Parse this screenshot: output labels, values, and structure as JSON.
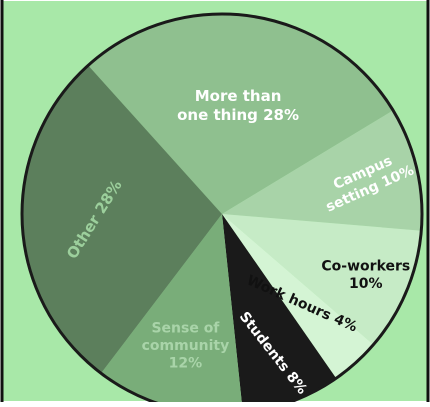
{
  "chart_data": {
    "type": "pie",
    "title": "",
    "start_angle_deg": -132,
    "direction": "clockwise",
    "slices": [
      {
        "label": "More than one thing",
        "value": 28,
        "color": "#8fc08f",
        "text_color": "#ffffff",
        "label_lines": [
          "More than",
          "one thing 28%"
        ]
      },
      {
        "label": "Campus setting",
        "value": 10,
        "color": "#a8d3a8",
        "text_color": "#ffffff",
        "label_lines": [
          "Campus",
          "setting 10%"
        ]
      },
      {
        "label": "Co-workers",
        "value": 10,
        "color": "#c6ebc6",
        "text_color": "#111111",
        "label_lines": [
          "Co-workers",
          "10%"
        ]
      },
      {
        "label": "Work hours",
        "value": 4,
        "color": "#d4f4d4",
        "text_color": "#111111",
        "label_lines": [
          "Work hours 4%"
        ]
      },
      {
        "label": "Students",
        "value": 8,
        "color": "#1a1a1a",
        "text_color": "#ffffff",
        "label_lines": [
          "Students 8%"
        ]
      },
      {
        "label": "Sense of community",
        "value": 12,
        "color": "#79ad79",
        "text_color": "#a9d4a9",
        "label_lines": [
          "Sense of",
          "community",
          "12%"
        ]
      },
      {
        "label": "Other",
        "value": 28,
        "color": "#5c7f5c",
        "text_color": "#9ccf9c",
        "label_lines": [
          "Other 28%"
        ]
      }
    ],
    "legend": "none",
    "background": "#a8e8a8",
    "frame_color": "#111111"
  }
}
